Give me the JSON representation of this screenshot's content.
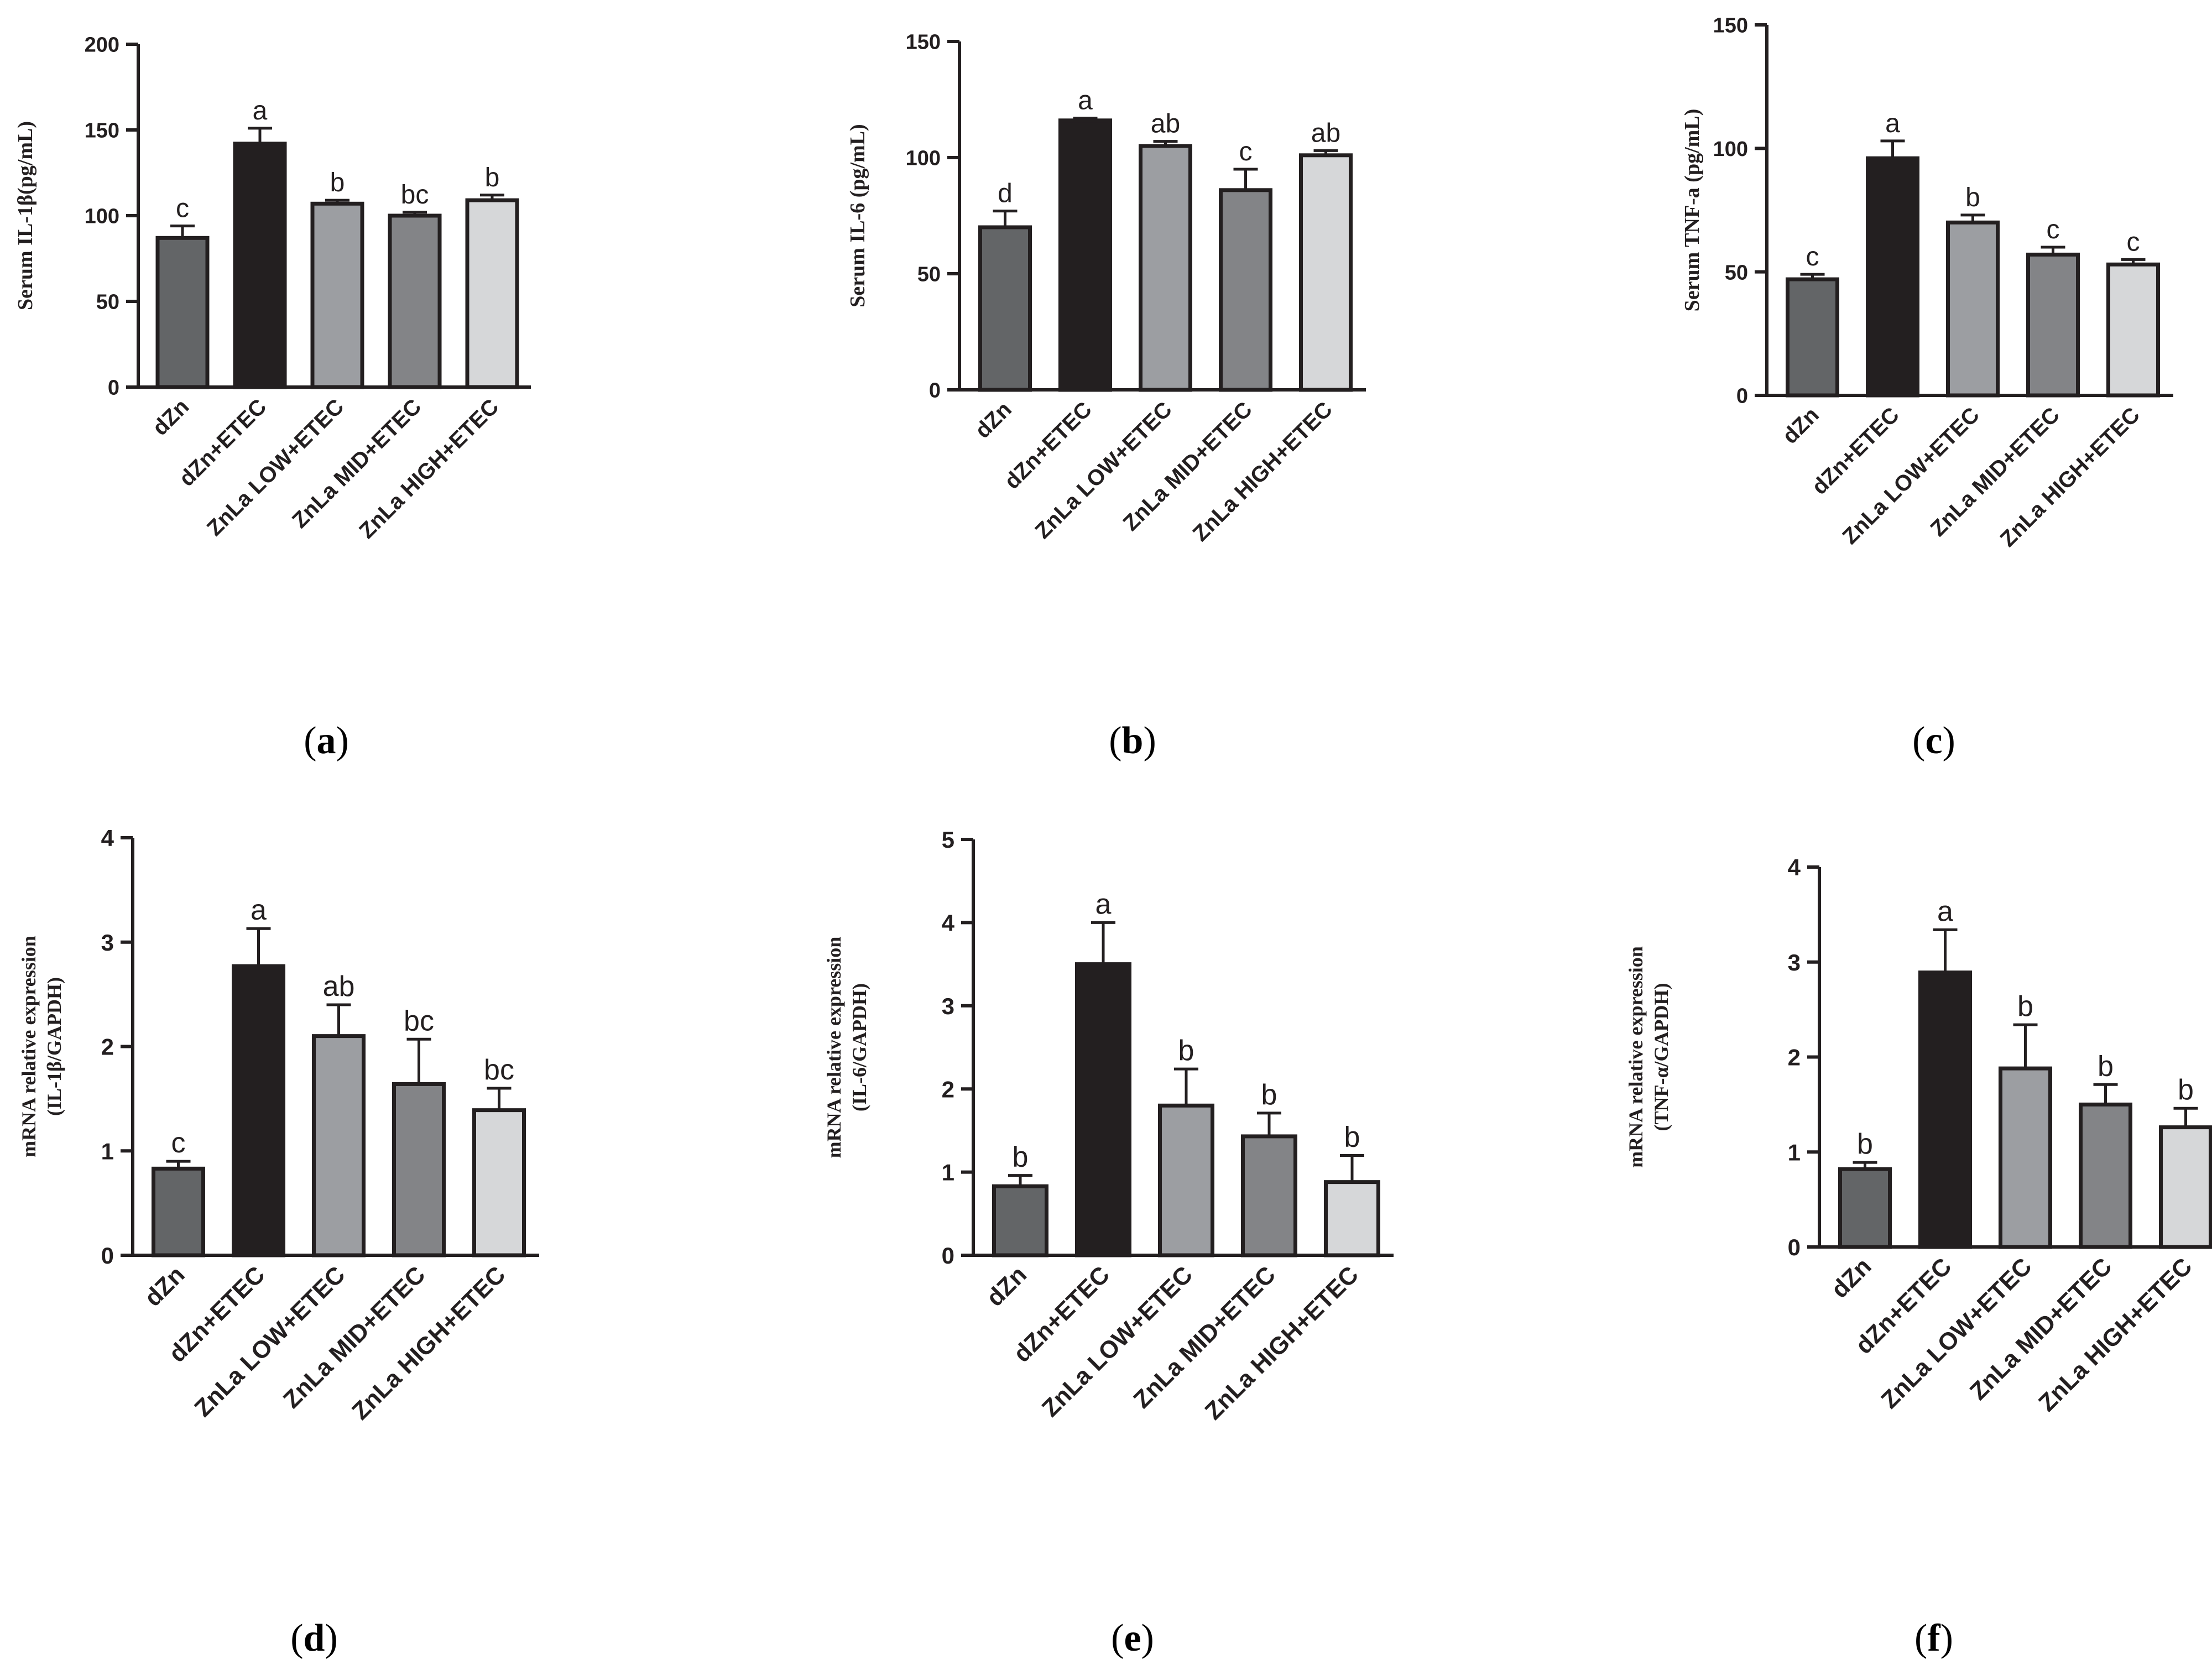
{
  "colors": {
    "axis": "#231f20",
    "bars": [
      "#636567",
      "#231f20",
      "#9c9ea2",
      "#838487",
      "#d6d7d9"
    ]
  },
  "chart_data": [
    {
      "panel": "a",
      "type": "bar",
      "ylabel": "Serum IL-1β(pg/mL)",
      "ylabel_lines": [
        "Serum IL-1β(pg/mL)"
      ],
      "ylim": [
        0,
        200
      ],
      "ticks": [
        0,
        50,
        100,
        150,
        200
      ],
      "categories": [
        "dZn",
        "dZn+ETEC",
        "ZnLa LOW+ETEC",
        "ZnLa MID+ETEC",
        "ZnLa HIGH+ETEC"
      ],
      "values": [
        87,
        142,
        107,
        100,
        109
      ],
      "errors": [
        7,
        9,
        2,
        2,
        3
      ],
      "labels": [
        "c",
        "a",
        "b",
        "bc",
        "b"
      ]
    },
    {
      "panel": "b",
      "type": "bar",
      "ylabel": "Serum IL-6 (pg/mL)",
      "ylabel_lines": [
        "Serum IL-6 (pg/mL)"
      ],
      "ylim": [
        0,
        150
      ],
      "ticks": [
        0,
        50,
        100,
        150
      ],
      "categories": [
        "dZn",
        "dZn+ETEC",
        "ZnLa LOW+ETEC",
        "ZnLa MID+ETEC",
        "ZnLa HIGH+ETEC"
      ],
      "values": [
        70,
        116,
        105,
        86,
        101
      ],
      "errors": [
        7,
        1,
        2,
        9,
        2
      ],
      "labels": [
        "d",
        "a",
        "ab",
        "c",
        "ab"
      ]
    },
    {
      "panel": "c",
      "type": "bar",
      "ylabel": "Serum TNF-a (pg/mL)",
      "ylabel_lines": [
        "Serum TNF-a (pg/mL)"
      ],
      "ylim": [
        0,
        150
      ],
      "ticks": [
        0,
        50,
        100,
        150
      ],
      "categories": [
        "dZn",
        "dZn+ETEC",
        "ZnLa LOW+ETEC",
        "ZnLa MID+ETEC",
        "ZnLa HIGH+ETEC"
      ],
      "values": [
        47,
        96,
        70,
        57,
        53
      ],
      "errors": [
        2,
        7,
        3,
        3,
        2
      ],
      "labels": [
        "c",
        "a",
        "b",
        "c",
        "c"
      ]
    },
    {
      "panel": "d",
      "type": "bar",
      "ylabel": "mRNA relative expression (IL-1β/GAPDH)",
      "ylabel_lines": [
        "mRNA relative expression",
        "(IL-1β/GAPDH)"
      ],
      "ylim": [
        0,
        4
      ],
      "ticks": [
        0,
        1,
        2,
        3,
        4
      ],
      "categories": [
        "dZn",
        "dZn+ETEC",
        "ZnLa LOW+ETEC",
        "ZnLa MID+ETEC",
        "ZnLa HIGH+ETEC"
      ],
      "values": [
        0.83,
        2.77,
        2.1,
        1.64,
        1.39
      ],
      "errors": [
        0.07,
        0.36,
        0.3,
        0.43,
        0.21
      ],
      "labels": [
        "c",
        "a",
        "ab",
        "bc",
        "bc"
      ]
    },
    {
      "panel": "e",
      "type": "bar",
      "ylabel": "mRNA relative expression (IL-6/GAPDH)",
      "ylabel_lines": [
        "mRNA relative expression",
        "(IL-6/GAPDH)"
      ],
      "ylim": [
        0,
        5
      ],
      "ticks": [
        0,
        1,
        2,
        3,
        4,
        5
      ],
      "categories": [
        "dZn",
        "dZn+ETEC",
        "ZnLa LOW+ETEC",
        "ZnLa MID+ETEC",
        "ZnLa HIGH+ETEC"
      ],
      "values": [
        0.83,
        3.5,
        1.8,
        1.43,
        0.88
      ],
      "errors": [
        0.13,
        0.5,
        0.44,
        0.28,
        0.32
      ],
      "labels": [
        "b",
        "a",
        "b",
        "b",
        "b"
      ]
    },
    {
      "panel": "f",
      "type": "bar",
      "ylabel": "mRNA relative expression (TNF-α/GAPDH)",
      "ylabel_lines": [
        "mRNA relative expression",
        "(TNF-α/GAPDH)"
      ],
      "ylim": [
        0,
        4
      ],
      "ticks": [
        0,
        1,
        2,
        3,
        4
      ],
      "categories": [
        "dZn",
        "dZn+ETEC",
        "ZnLa LOW+ETEC",
        "ZnLa MID+ETEC",
        "ZnLa HIGH+ETEC"
      ],
      "values": [
        0.82,
        2.89,
        1.88,
        1.5,
        1.26
      ],
      "errors": [
        0.07,
        0.45,
        0.46,
        0.21,
        0.2
      ],
      "labels": [
        "b",
        "a",
        "b",
        "b",
        "b"
      ]
    }
  ]
}
